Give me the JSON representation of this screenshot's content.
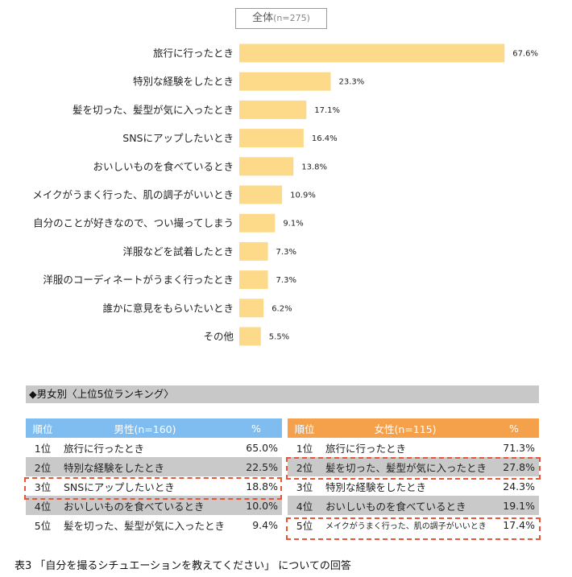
{
  "badge": {
    "label": "全体",
    "n": "(n=275)"
  },
  "chart_data": {
    "type": "bar",
    "orientation": "horizontal",
    "categories": [
      "旅行に行ったとき",
      "特別な経験をしたとき",
      "髪を切った、髪型が気に入ったとき",
      "SNSにアップしたいとき",
      "おいしいものを食べているとき",
      "メイクがうまく行った、肌の調子がいいとき",
      "自分のことが好きなので、つい撮ってしまう",
      "洋服などを試着したとき",
      "洋服のコーディネートがうまく行ったとき",
      "誰かに意見をもらいたいとき",
      "その他"
    ],
    "values": [
      67.6,
      23.3,
      17.1,
      16.4,
      13.8,
      10.9,
      9.1,
      7.3,
      7.3,
      6.2,
      5.5
    ],
    "value_labels": [
      "67.6%",
      "23.3%",
      "17.1%",
      "16.4%",
      "13.8%",
      "10.9%",
      "9.1%",
      "7.3%",
      "7.3%",
      "6.2%",
      "5.5%"
    ],
    "bar_color": "#fdd98a"
  },
  "section": {
    "title": "◆男女別〈上位5位ランキング〉"
  },
  "male": {
    "headers": [
      "順位",
      "男性(n=160)",
      "%"
    ],
    "rows": [
      {
        "rank": "1位",
        "item": "旅行に行ったとき",
        "pct": "65.0%"
      },
      {
        "rank": "2位",
        "item": "特別な経験をしたとき",
        "pct": "22.5%"
      },
      {
        "rank": "3位",
        "item": "SNSにアップしたいとき",
        "pct": "18.8%"
      },
      {
        "rank": "4位",
        "item": "おいしいものを食べているとき",
        "pct": "10.0%"
      },
      {
        "rank": "5位",
        "item": "髪を切った、髪型が気に入ったとき",
        "pct": "9.4%"
      }
    ]
  },
  "female": {
    "headers": [
      "順位",
      "女性(n=115)",
      "%"
    ],
    "rows": [
      {
        "rank": "1位",
        "item": "旅行に行ったとき",
        "pct": "71.3%"
      },
      {
        "rank": "2位",
        "item": "髪を切った、髪型が気に入ったとき",
        "pct": "27.8%"
      },
      {
        "rank": "3位",
        "item": "特別な経験をしたとき",
        "pct": "24.3%"
      },
      {
        "rank": "4位",
        "item": "おいしいものを食べているとき",
        "pct": "19.1%"
      },
      {
        "rank": "5位",
        "item": "メイクがうまく行った、肌の調子がいいとき",
        "pct": "17.4%"
      }
    ]
  },
  "caption": "表3 「自分を撮るシチュエーションを教えてください」 についての回答",
  "colors": {
    "male_header": "#7fbdf0",
    "female_header": "#f5a04b",
    "highlight": "#e8563a"
  }
}
